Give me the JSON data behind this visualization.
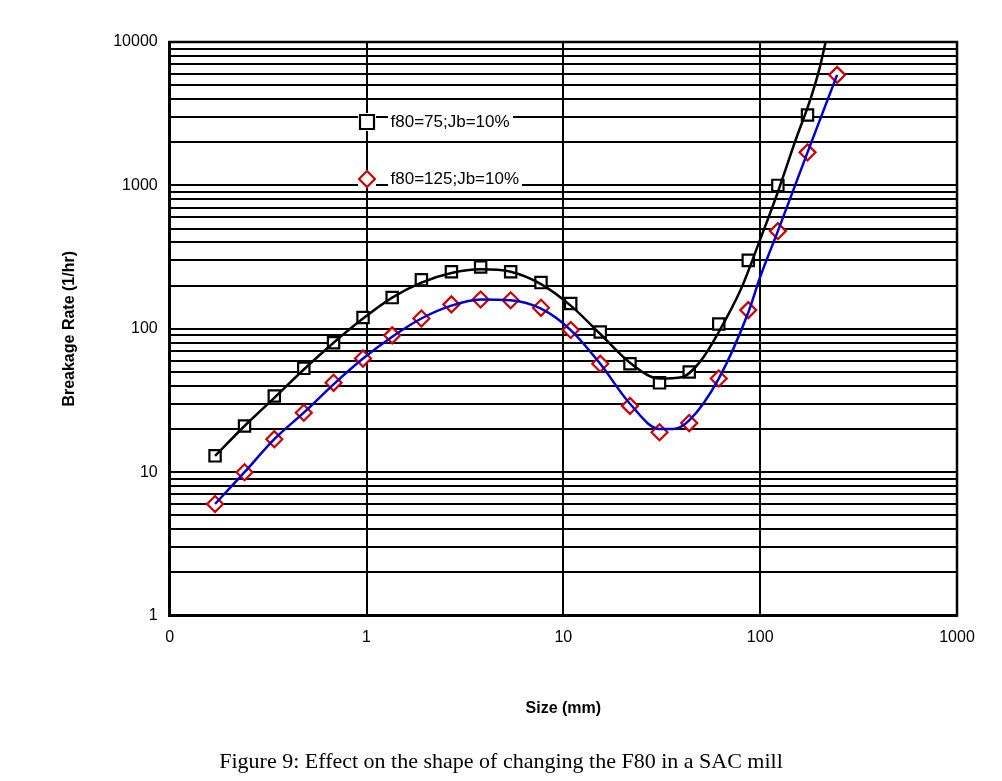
{
  "chart_data": {
    "type": "scatter",
    "xlabel": "Size (mm)",
    "ylabel": "Breakage Rate (1/hr)",
    "annotations": [
      "Figure 9:  Effect on the shape of changing the F80 in a SAC mill"
    ],
    "log": "xy",
    "grid": true,
    "legend": "top",
    "xlim": [
      0.1,
      1000
    ],
    "xticks": [
      {
        "value": 0.1,
        "label": "0"
      },
      1,
      10,
      100,
      1000
    ],
    "ylim": [
      1,
      10000
    ],
    "yticks": [
      1,
      {
        "value": 2,
        "label": null
      },
      {
        "value": 3,
        "label": null
      },
      {
        "value": 4,
        "label": null
      },
      {
        "value": 5,
        "label": null
      },
      {
        "value": 6,
        "label": null
      },
      {
        "value": 7,
        "label": null
      },
      {
        "value": 8,
        "label": null
      },
      {
        "value": 9,
        "label": null
      },
      10,
      {
        "value": 20,
        "label": null
      },
      {
        "value": 30,
        "label": null
      },
      {
        "value": 40,
        "label": null
      },
      {
        "value": 50,
        "label": null
      },
      {
        "value": 60,
        "label": null
      },
      {
        "value": 70,
        "label": null
      },
      {
        "value": 80,
        "label": null
      },
      {
        "value": 90,
        "label": null
      },
      100,
      {
        "value": 200,
        "label": null
      },
      {
        "value": 300,
        "label": null
      },
      {
        "value": 400,
        "label": null
      },
      {
        "value": 500,
        "label": null
      },
      {
        "value": 600,
        "label": null
      },
      {
        "value": 700,
        "label": null
      },
      {
        "value": 800,
        "label": null
      },
      {
        "value": 900,
        "label": null
      },
      1000,
      {
        "value": 2000,
        "label": null
      },
      {
        "value": 3000,
        "label": null
      },
      {
        "value": 4000,
        "label": null
      },
      {
        "value": 5000,
        "label": null
      },
      {
        "value": 6000,
        "label": null
      },
      {
        "value": 7000,
        "label": null
      },
      {
        "value": 8000,
        "label": null
      },
      {
        "value": 9000,
        "label": null
      },
      10000
    ],
    "series": [
      {
        "type": "line",
        "color": "#000000",
        "marker": "none",
        "x": [
          0.17,
          0.24,
          0.34,
          0.48,
          0.68,
          0.96,
          1.35,
          1.9,
          2.7,
          3.8,
          5.4,
          7.7,
          10.9,
          15.4,
          21.8,
          30.8,
          40,
          50,
          61.6,
          80,
          100,
          123,
          150,
          180,
          200,
          215
        ],
        "values": [
          13,
          21,
          33,
          52,
          80,
          118,
          165,
          210,
          245,
          260,
          250,
          205,
          145,
          92,
          58,
          45,
          46,
          60,
          95,
          190,
          420,
          900,
          2000,
          4000,
          6500,
          10000
        ]
      },
      {
        "type": "line",
        "color": "#0000cc",
        "marker": "none",
        "x": [
          0.17,
          0.24,
          0.34,
          0.48,
          0.68,
          0.96,
          1.35,
          1.9,
          2.7,
          3.8,
          5.4,
          7.7,
          10.9,
          15.4,
          21.8,
          30.8,
          36,
          43.6,
          61.6,
          87,
          100,
          123,
          174,
          246
        ],
        "values": [
          6,
          10,
          17,
          26,
          41,
          62,
          88,
          118,
          145,
          160,
          158,
          138,
          98,
          57,
          30,
          20,
          20,
          23,
          45,
          130,
          230,
          480,
          1700,
          5900
        ]
      },
      {
        "name": "f80=75;Jb=10%",
        "color": "#000000",
        "marker": "square",
        "x": [
          0.17,
          0.24,
          0.34,
          0.48,
          0.68,
          0.96,
          1.35,
          1.9,
          2.7,
          3.8,
          5.4,
          7.7,
          10.9,
          15.4,
          21.8,
          30.8,
          43.6,
          61.6,
          87,
          123,
          174
        ],
        "values": [
          13,
          21,
          34,
          53,
          80,
          120,
          165,
          220,
          250,
          270,
          250,
          210,
          150,
          95,
          57,
          42,
          50,
          108,
          300,
          1000,
          3100
        ]
      },
      {
        "name": "f80=125;Jb=10%",
        "color": "#cc0000",
        "marker": "diamond",
        "x": [
          0.17,
          0.24,
          0.34,
          0.48,
          0.68,
          0.96,
          1.35,
          1.9,
          2.7,
          3.8,
          5.4,
          7.7,
          10.9,
          15.4,
          21.8,
          30.8,
          43.6,
          61.6,
          87,
          123,
          174,
          246
        ],
        "values": [
          6,
          10,
          17,
          26,
          42,
          62,
          90,
          118,
          148,
          160,
          158,
          140,
          98,
          57,
          29,
          19,
          22,
          45,
          135,
          480,
          1700,
          5900
        ]
      }
    ]
  }
}
